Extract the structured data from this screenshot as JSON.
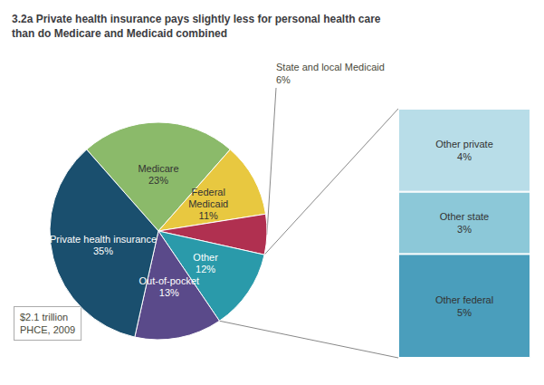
{
  "chart_data": [
    {
      "type": "pie",
      "title": "3.2a Private health insurance pays slightly less for personal health care\nthan do Medicare and Medicaid combined",
      "categories": [
        "Medicare\n23%",
        "Federal\nMedicaid\n11%",
        "State and local Medicaid\n6%",
        "Other\n12%",
        "Out-of-pocket\n13%",
        "Private health insurance\n35%"
      ],
      "values": [
        23,
        11,
        6,
        12,
        13,
        35
      ],
      "colors": [
        "#8bba6a",
        "#e8c840",
        "#b03050",
        "#2a9aaa",
        "#5a4a8a",
        "#1a4f6e"
      ],
      "annotations": [
        "State and local Medicaid\n6%",
        "$2.1 trillion\nPHCE, 2009"
      ]
    },
    {
      "type": "bar",
      "stacked": true,
      "categories": [
        "Other federal\n5%",
        "Other state\n3%",
        "Other private\n4%"
      ],
      "values": [
        5,
        3,
        4
      ],
      "colors": [
        "#4a9ebc",
        "#8cc8d8",
        "#b8dde8"
      ],
      "ylim": [
        0,
        12
      ],
      "tick_labels": false,
      "grid": false
    }
  ]
}
